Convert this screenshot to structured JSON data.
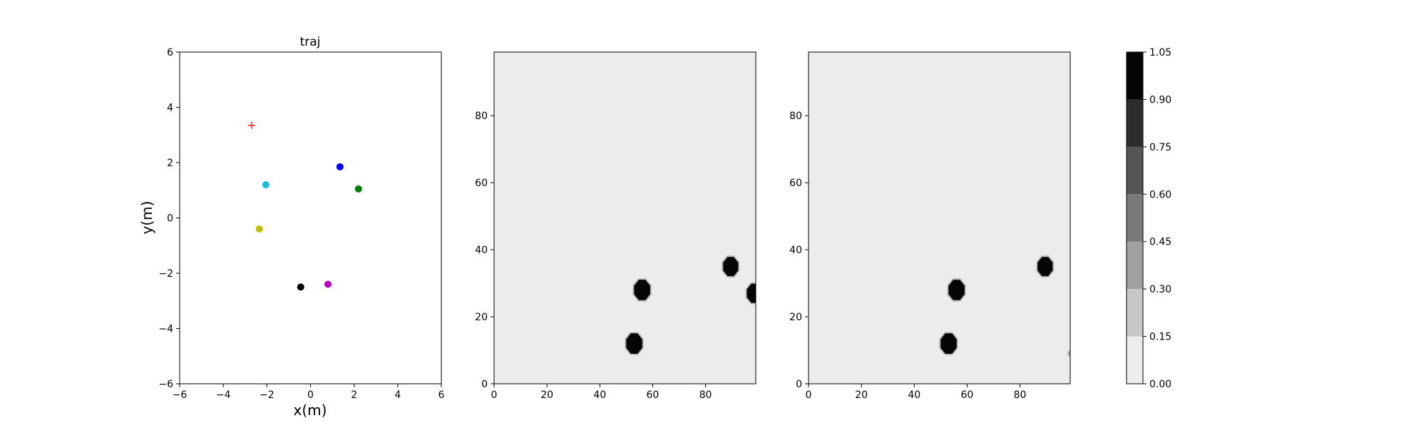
{
  "chart_data": [
    {
      "type": "scatter",
      "title": "traj",
      "xlabel": "x(m)",
      "ylabel": "y(m)",
      "xlim": [
        -6,
        6
      ],
      "ylim": [
        -6,
        6
      ],
      "xticks": [
        -6,
        -4,
        -2,
        0,
        2,
        4,
        6
      ],
      "yticks": [
        -6,
        -4,
        -2,
        0,
        2,
        4,
        6
      ],
      "grid": false,
      "points": [
        {
          "x": -2.7,
          "y": 3.35,
          "color": "#ff0000",
          "marker": "plus"
        },
        {
          "x": 1.35,
          "y": 1.85,
          "color": "#0000ee",
          "marker": "circle"
        },
        {
          "x": -2.05,
          "y": 1.2,
          "color": "#17becf",
          "marker": "circle"
        },
        {
          "x": 2.2,
          "y": 1.05,
          "color": "#008000",
          "marker": "circle"
        },
        {
          "x": -2.35,
          "y": -0.4,
          "color": "#bfbf00",
          "marker": "circle"
        },
        {
          "x": 0.8,
          "y": -2.4,
          "color": "#bf00bf",
          "marker": "circle"
        },
        {
          "x": -0.45,
          "y": -2.5,
          "color": "#000000",
          "marker": "circle"
        }
      ]
    },
    {
      "type": "heatmap",
      "xlim": [
        0,
        99
      ],
      "ylim": [
        0,
        99
      ],
      "xticks": [
        0,
        20,
        40,
        60,
        80
      ],
      "yticks": [
        0,
        20,
        40,
        60,
        80
      ],
      "background_value": 0.05,
      "blobs": [
        {
          "cx": 56,
          "cy": 28,
          "r": 3.3,
          "value": 1.0
        },
        {
          "cx": 53,
          "cy": 12,
          "r": 3.3,
          "value": 1.0
        },
        {
          "cx": 89.5,
          "cy": 35,
          "r": 3.1,
          "value": 1.0
        },
        {
          "cx": 98.5,
          "cy": 27,
          "r": 3.1,
          "value": 1.0
        }
      ]
    },
    {
      "type": "heatmap",
      "xlim": [
        0,
        99
      ],
      "ylim": [
        0,
        99
      ],
      "xticks": [
        0,
        20,
        40,
        60,
        80
      ],
      "yticks": [
        0,
        20,
        40,
        60,
        80
      ],
      "background_value": 0.05,
      "blobs": [
        {
          "cx": 56,
          "cy": 28,
          "r": 3.3,
          "value": 1.0
        },
        {
          "cx": 53,
          "cy": 12,
          "r": 3.3,
          "value": 1.0
        },
        {
          "cx": 89.5,
          "cy": 35,
          "r": 3.1,
          "value": 1.0
        },
        {
          "cx": 99,
          "cy": 9,
          "r": 0.8,
          "value": 0.3
        }
      ]
    }
  ],
  "colorbar": {
    "levels": [
      0.0,
      0.15,
      0.3,
      0.45,
      0.6,
      0.75,
      0.9,
      1.05
    ],
    "tick_labels": [
      "0.00",
      "0.15",
      "0.30",
      "0.45",
      "0.60",
      "0.75",
      "0.90",
      "1.05"
    ],
    "colors": [
      "#ececec",
      "#c7c7c7",
      "#a0a0a0",
      "#7a7a7a",
      "#555555",
      "#2c2c2c",
      "#050505"
    ]
  }
}
